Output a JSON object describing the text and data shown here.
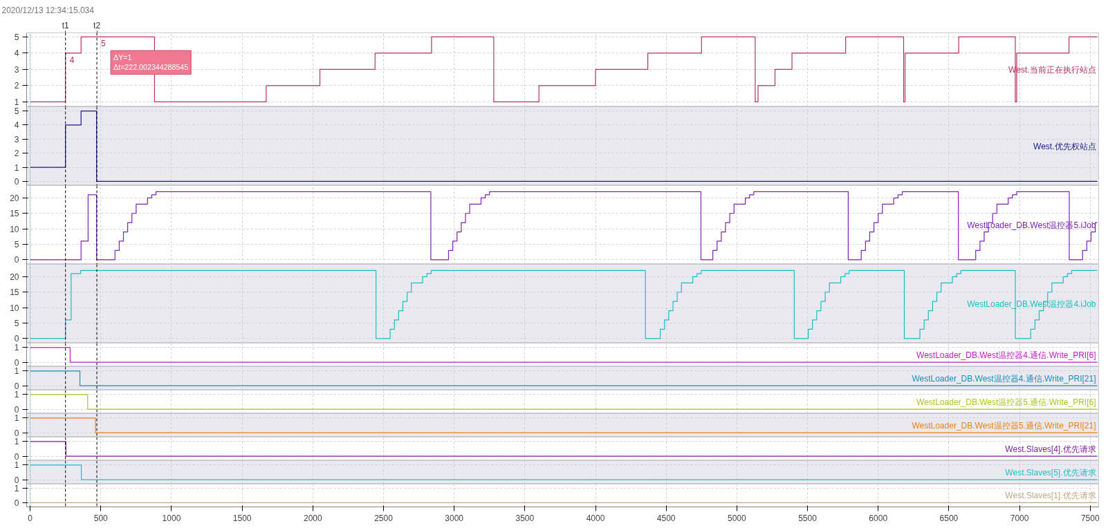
{
  "chart_data": [
    {
      "type": "step",
      "xlim": [
        -25,
        7560
      ],
      "xticks": [
        0,
        500,
        1000,
        1500,
        2000,
        2500,
        3000,
        3500,
        4000,
        4500,
        5000,
        5500,
        6000,
        6500,
        7000,
        7500
      ],
      "ylim": [
        0.7,
        5.25
      ],
      "yticks": [
        1,
        2,
        3,
        4,
        5
      ],
      "grid": true,
      "tick_labels": "y",
      "series": [
        {
          "name": "West.当前正在执行站点",
          "color": "#b8315f",
          "x": [
            0,
            250,
            360,
            880,
            1670,
            2050,
            2440,
            2840,
            3280,
            3600,
            4000,
            4370,
            4750,
            5130,
            5150,
            5270,
            5390,
            5770,
            6180,
            6190,
            6570,
            6970,
            6980,
            7350,
            7550
          ],
          "values": [
            1,
            4,
            5,
            1,
            2,
            3,
            4,
            5,
            1,
            2,
            3,
            4,
            5,
            1,
            2,
            3,
            4,
            5,
            1,
            4,
            5,
            1,
            4,
            5,
            5
          ]
        }
      ],
      "ref_lines": [
        {
          "axis": "x",
          "value": 0,
          "label": null,
          "color": "#1aa3a3",
          "line_style": "dotted"
        },
        {
          "axis": "x",
          "value": 250,
          "label": "t1",
          "color": "#000000",
          "line_style": "dashed"
        },
        {
          "axis": "x",
          "value": 472,
          "label": "t2",
          "color": "#000000",
          "line_style": "dashed"
        }
      ],
      "annotations": [
        "2020/12/13 12:34:15.034",
        {
          "text": "4",
          "x": 250,
          "y": 4
        },
        {
          "text": "5",
          "x": 472,
          "y": 5
        },
        "ΔY=1\nΔt=222.002344288545"
      ]
    },
    {
      "type": "step",
      "xlim": [
        -25,
        7560
      ],
      "xticks": [
        0,
        500,
        1000,
        1500,
        2000,
        2500,
        3000,
        3500,
        4000,
        4500,
        5000,
        5500,
        6000,
        6500,
        7000,
        7500
      ],
      "ylim": [
        -0.3,
        5.3
      ],
      "yticks": [
        0,
        1,
        2,
        3,
        4,
        5
      ],
      "grid": true,
      "tick_labels": "y",
      "series": [
        {
          "name": "West.优先权站点",
          "color": "#1a1a8c",
          "x": [
            0,
            250,
            360,
            470,
            7550
          ],
          "values": [
            1,
            4,
            5,
            0,
            0
          ]
        }
      ],
      "ref_lines": [
        {
          "axis": "x",
          "value": 0,
          "label": null,
          "color": "#1aa3a3",
          "line_style": "dotted"
        },
        {
          "axis": "x",
          "value": 250,
          "label": null,
          "color": "#000000",
          "line_style": "dashed"
        },
        {
          "axis": "x",
          "value": 472,
          "label": null,
          "color": "#000000",
          "line_style": "dashed"
        }
      ]
    },
    {
      "type": "step",
      "xlim": [
        -25,
        7560
      ],
      "xticks": [
        0,
        500,
        1000,
        1500,
        2000,
        2500,
        3000,
        3500,
        4000,
        4500,
        5000,
        5500,
        6000,
        6500,
        7000,
        7500
      ],
      "ylim": [
        -1.5,
        24
      ],
      "yticks": [
        0,
        5,
        10,
        15,
        20
      ],
      "grid": true,
      "tick_labels": "y",
      "series": [
        {
          "name": "WestLoader_DB.West温控器5.iJob",
          "color": "#7e22b4",
          "x": [
            0,
            360,
            410,
            470,
            600,
            630,
            660,
            690,
            720,
            750,
            830,
            860,
            890,
            2835,
            2960,
            2990,
            3020,
            3050,
            3080,
            3110,
            3190,
            3220,
            3250,
            4746,
            4830,
            4860,
            4890,
            4920,
            4950,
            4980,
            5060,
            5090,
            5120,
            5788,
            5880,
            5910,
            5940,
            5970,
            6000,
            6030,
            6110,
            6140,
            6170,
            6567,
            6690,
            6720,
            6750,
            6780,
            6810,
            6840,
            6920,
            6950,
            6980,
            7352,
            7446,
            7476,
            7506,
            7536,
            7550
          ],
          "values": [
            0,
            6,
            21,
            0,
            3,
            6,
            9,
            12,
            15,
            18,
            20,
            21,
            22,
            0,
            3,
            6,
            9,
            12,
            15,
            18,
            20,
            21,
            22,
            0,
            3,
            6,
            9,
            12,
            15,
            18,
            20,
            21,
            22,
            0,
            3,
            6,
            9,
            12,
            15,
            18,
            20,
            21,
            22,
            0,
            3,
            6,
            9,
            12,
            15,
            18,
            20,
            21,
            22,
            0,
            3,
            6,
            9,
            12,
            12
          ]
        }
      ],
      "ref_lines": [
        {
          "axis": "x",
          "value": 0,
          "label": null,
          "color": "#1aa3a3",
          "line_style": "dotted"
        },
        {
          "axis": "x",
          "value": 250,
          "label": null,
          "color": "#000000",
          "line_style": "dashed"
        },
        {
          "axis": "x",
          "value": 472,
          "label": null,
          "color": "#000000",
          "line_style": "dashed"
        }
      ]
    },
    {
      "type": "step",
      "xlim": [
        -25,
        7560
      ],
      "xticks": [
        0,
        500,
        1000,
        1500,
        2000,
        2500,
        3000,
        3500,
        4000,
        4500,
        5000,
        5500,
        6000,
        6500,
        7000,
        7500
      ],
      "ylim": [
        -1.5,
        24
      ],
      "yticks": [
        0,
        5,
        10,
        15,
        20
      ],
      "grid": true,
      "tick_labels": "y",
      "series": [
        {
          "name": "WestLoader_DB.West温控器4.iJob",
          "color": "#17bfc4",
          "x": [
            0,
            250,
            290,
            357,
            2447,
            2547,
            2577,
            2607,
            2637,
            2667,
            2697,
            2777,
            2807,
            2837,
            4353,
            4458,
            4488,
            4518,
            4548,
            4578,
            4608,
            4688,
            4718,
            4748,
            5406,
            5505,
            5535,
            5565,
            5595,
            5625,
            5655,
            5735,
            5765,
            5795,
            6185,
            6295,
            6325,
            6355,
            6385,
            6415,
            6445,
            6525,
            6555,
            6585,
            6970,
            7079,
            7109,
            7139,
            7169,
            7199,
            7229,
            7309,
            7339,
            7369,
            7550
          ],
          "values": [
            0,
            6,
            21,
            22,
            0,
            3,
            6,
            9,
            12,
            15,
            18,
            20,
            21,
            22,
            0,
            3,
            6,
            9,
            12,
            15,
            18,
            20,
            21,
            22,
            0,
            3,
            6,
            9,
            12,
            15,
            18,
            20,
            21,
            22,
            0,
            3,
            6,
            9,
            12,
            15,
            18,
            20,
            21,
            22,
            0,
            3,
            6,
            9,
            12,
            15,
            18,
            20,
            21,
            22,
            22
          ]
        }
      ],
      "ref_lines": [
        {
          "axis": "x",
          "value": 0,
          "label": null,
          "color": "#1aa3a3",
          "line_style": "dotted"
        },
        {
          "axis": "x",
          "value": 250,
          "label": null,
          "color": "#000000",
          "line_style": "dashed"
        },
        {
          "axis": "x",
          "value": 472,
          "label": null,
          "color": "#000000",
          "line_style": "dashed"
        }
      ]
    },
    {
      "type": "step",
      "xlim": [
        -25,
        7560
      ],
      "xticks": [
        0,
        500,
        1000,
        1500,
        2000,
        2500,
        3000,
        3500,
        4000,
        4500,
        5000,
        5500,
        6000,
        6500,
        7000,
        7500
      ],
      "ylim": [
        -0.3,
        1.3
      ],
      "yticks": [
        0,
        1
      ],
      "grid": true,
      "tick_labels": "y",
      "series": [
        {
          "name": "WestLoader_DB.West温控器4.通信.Write_PRI[6]",
          "color": "#c020c0",
          "x": [
            0,
            283,
            7550
          ],
          "values": [
            1,
            0,
            0
          ]
        }
      ],
      "ref_lines": [
        {
          "axis": "x",
          "value": 0,
          "label": null,
          "color": "#1aa3a3",
          "line_style": "dotted"
        },
        {
          "axis": "x",
          "value": 250,
          "label": null,
          "color": "#000000",
          "line_style": "dashed"
        },
        {
          "axis": "x",
          "value": 472,
          "label": null,
          "color": "#000000",
          "line_style": "dashed"
        }
      ]
    },
    {
      "type": "step",
      "xlim": [
        -25,
        7560
      ],
      "xticks": [
        0,
        500,
        1000,
        1500,
        2000,
        2500,
        3000,
        3500,
        4000,
        4500,
        5000,
        5500,
        6000,
        6500,
        7000,
        7500
      ],
      "ylim": [
        -0.3,
        1.3
      ],
      "yticks": [
        0,
        1
      ],
      "grid": true,
      "tick_labels": "y",
      "series": [
        {
          "name": "WestLoader_DB.West温控器4.通信.Write_PRI[21]",
          "color": "#1a8fb8",
          "x": [
            0,
            352,
            7550
          ],
          "values": [
            1,
            0,
            0
          ]
        }
      ],
      "ref_lines": [
        {
          "axis": "x",
          "value": 0,
          "label": null,
          "color": "#1aa3a3",
          "line_style": "dotted"
        },
        {
          "axis": "x",
          "value": 250,
          "label": null,
          "color": "#000000",
          "line_style": "dashed"
        },
        {
          "axis": "x",
          "value": 472,
          "label": null,
          "color": "#000000",
          "line_style": "dashed"
        }
      ]
    },
    {
      "type": "step",
      "xlim": [
        -25,
        7560
      ],
      "xticks": [
        0,
        500,
        1000,
        1500,
        2000,
        2500,
        3000,
        3500,
        4000,
        4500,
        5000,
        5500,
        6000,
        6500,
        7000,
        7500
      ],
      "ylim": [
        -0.3,
        1.3
      ],
      "yticks": [
        0,
        1
      ],
      "grid": true,
      "tick_labels": "y",
      "series": [
        {
          "name": "WestLoader_DB.West温控器5.通信.Write_PRI[6]",
          "color": "#a8c820",
          "x": [
            0,
            407,
            7550
          ],
          "values": [
            1,
            0,
            0
          ]
        }
      ],
      "ref_lines": [
        {
          "axis": "x",
          "value": 0,
          "label": null,
          "color": "#1aa3a3",
          "line_style": "dotted"
        },
        {
          "axis": "x",
          "value": 250,
          "label": null,
          "color": "#000000",
          "line_style": "dashed"
        },
        {
          "axis": "x",
          "value": 472,
          "label": null,
          "color": "#000000",
          "line_style": "dashed"
        }
      ]
    },
    {
      "type": "step",
      "xlim": [
        -25,
        7560
      ],
      "xticks": [
        0,
        500,
        1000,
        1500,
        2000,
        2500,
        3000,
        3500,
        4000,
        4500,
        5000,
        5500,
        6000,
        6500,
        7000,
        7500
      ],
      "ylim": [
        -0.3,
        1.3
      ],
      "yticks": [
        0,
        1
      ],
      "grid": true,
      "tick_labels": "y",
      "series": [
        {
          "name": "WestLoader_DB.West温控器5.通信.Write_PRI[21]",
          "color": "#f08010",
          "x": [
            0,
            462,
            7550
          ],
          "values": [
            1,
            0,
            0
          ]
        }
      ],
      "ref_lines": [
        {
          "axis": "x",
          "value": 0,
          "label": null,
          "color": "#1aa3a3",
          "line_style": "dotted"
        },
        {
          "axis": "x",
          "value": 250,
          "label": null,
          "color": "#000000",
          "line_style": "dashed"
        },
        {
          "axis": "x",
          "value": 472,
          "label": null,
          "color": "#000000",
          "line_style": "dashed"
        }
      ]
    },
    {
      "type": "step",
      "xlim": [
        -25,
        7560
      ],
      "xticks": [
        0,
        500,
        1000,
        1500,
        2000,
        2500,
        3000,
        3500,
        4000,
        4500,
        5000,
        5500,
        6000,
        6500,
        7000,
        7500
      ],
      "ylim": [
        -0.3,
        1.3
      ],
      "yticks": [
        0,
        1
      ],
      "grid": true,
      "tick_labels": "y",
      "series": [
        {
          "name": "West.Slaves[4].优先请求",
          "color": "#8020a0",
          "x": [
            0,
            253,
            7550
          ],
          "values": [
            1,
            0,
            0
          ]
        }
      ],
      "ref_lines": [
        {
          "axis": "x",
          "value": 0,
          "label": null,
          "color": "#1aa3a3",
          "line_style": "dotted"
        },
        {
          "axis": "x",
          "value": 250,
          "label": null,
          "color": "#000000",
          "line_style": "dashed"
        },
        {
          "axis": "x",
          "value": 472,
          "label": null,
          "color": "#000000",
          "line_style": "dashed"
        }
      ]
    },
    {
      "type": "step",
      "xlim": [
        -25,
        7560
      ],
      "xticks": [
        0,
        500,
        1000,
        1500,
        2000,
        2500,
        3000,
        3500,
        4000,
        4500,
        5000,
        5500,
        6000,
        6500,
        7000,
        7500
      ],
      "ylim": [
        -0.3,
        1.3
      ],
      "yticks": [
        0,
        1
      ],
      "grid": true,
      "tick_labels": "y",
      "series": [
        {
          "name": "West.Slaves[5].优先请求",
          "color": "#20c0c8",
          "x": [
            0,
            362,
            7550
          ],
          "values": [
            1,
            0,
            0
          ]
        }
      ],
      "ref_lines": [
        {
          "axis": "x",
          "value": 0,
          "label": null,
          "color": "#1aa3a3",
          "line_style": "dotted"
        },
        {
          "axis": "x",
          "value": 250,
          "label": null,
          "color": "#000000",
          "line_style": "dashed"
        },
        {
          "axis": "x",
          "value": 472,
          "label": null,
          "color": "#000000",
          "line_style": "dashed"
        }
      ]
    },
    {
      "type": "step",
      "xlim": [
        -25,
        7560
      ],
      "xticks": [
        0,
        500,
        1000,
        1500,
        2000,
        2500,
        3000,
        3500,
        4000,
        4500,
        5000,
        5500,
        6000,
        6500,
        7000,
        7500
      ],
      "ylim": [
        -0.3,
        1.3
      ],
      "yticks": [
        0,
        1
      ],
      "grid": true,
      "series": [
        {
          "name": "West.Slaves[1].优先请求",
          "color": "#c0a880",
          "x": [
            0,
            7550
          ],
          "values": [
            0,
            0
          ]
        }
      ],
      "ref_lines": [
        {
          "axis": "x",
          "value": 0,
          "label": null,
          "color": "#1aa3a3",
          "line_style": "dotted"
        },
        {
          "axis": "x",
          "value": 250,
          "label": null,
          "color": "#000000",
          "line_style": "dashed"
        },
        {
          "axis": "x",
          "value": 472,
          "label": null,
          "color": "#000000",
          "line_style": "dashed"
        }
      ]
    }
  ]
}
